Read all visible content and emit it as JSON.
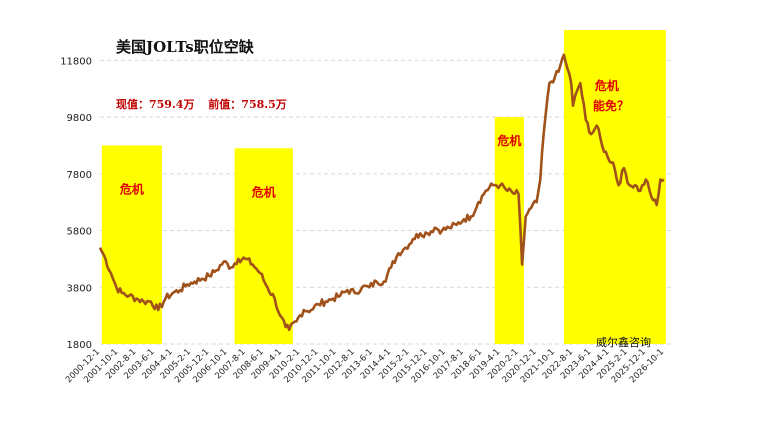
{
  "header": {
    "title": "美国JOLTs职位空缺",
    "current_label": "现值：759.4万",
    "previous_label": "前值：758.5万",
    "source": "威尔鑫咨询"
  },
  "colors": {
    "line": "#a0521a",
    "band": "#ffff00",
    "label": "#e00000",
    "grid": "#d9d9d9"
  },
  "chart_data": {
    "type": "line",
    "title": "美国JOLTs职位空缺",
    "xlabel": "",
    "ylabel": "",
    "ylim": [
      1800,
      12800
    ],
    "yticks": [
      1800,
      3800,
      5800,
      7800,
      9800,
      11800
    ],
    "grid": "horizontal dashed",
    "x_tick_labels": [
      "2000-12-1",
      "2001-10-1",
      "2002-8-1",
      "2003-6-1",
      "2004-4-1",
      "2005-2-1",
      "2005-12-1",
      "2006-10-1",
      "2007-8-1",
      "2008-6-1",
      "2009-4-1",
      "2010-2-1",
      "2010-12-1",
      "2011-10-1",
      "2012-8-1",
      "2013-6-1",
      "2014-4-1",
      "2015-2-1",
      "2015-12-1",
      "2016-10-1",
      "2017-8-1",
      "2018-6-1",
      "2019-4-1",
      "2020-2-1",
      "2020-12-1",
      "2021-10-1",
      "2022-8-1",
      "2023-6-1",
      "2024-4-1",
      "2025-2-1",
      "2025-12-1",
      "2026-10-1"
    ],
    "series": [
      {
        "name": "",
        "points": [
          [
            "2000-12",
            5200
          ],
          [
            "2001-03",
            4800
          ],
          [
            "2001-06",
            4300
          ],
          [
            "2001-09",
            3800
          ],
          [
            "2001-12",
            3600
          ],
          [
            "2002-04",
            3500
          ],
          [
            "2002-08",
            3400
          ],
          [
            "2002-12",
            3300
          ],
          [
            "2003-04",
            3300
          ],
          [
            "2003-08",
            3000
          ],
          [
            "2003-12",
            3400
          ],
          [
            "2004-04",
            3600
          ],
          [
            "2004-08",
            3700
          ],
          [
            "2004-12",
            3900
          ],
          [
            "2005-04",
            4000
          ],
          [
            "2005-08",
            4100
          ],
          [
            "2005-12",
            4200
          ],
          [
            "2006-04",
            4400
          ],
          [
            "2006-08",
            4700
          ],
          [
            "2006-12",
            4500
          ],
          [
            "2007-04",
            4800
          ],
          [
            "2007-08",
            4800
          ],
          [
            "2007-12",
            4600
          ],
          [
            "2008-04",
            4300
          ],
          [
            "2008-08",
            3800
          ],
          [
            "2008-12",
            3400
          ],
          [
            "2009-03",
            2800
          ],
          [
            "2009-06",
            2400
          ],
          [
            "2009-08",
            2300
          ],
          [
            "2009-12",
            2600
          ],
          [
            "2010-04",
            3000
          ],
          [
            "2010-08",
            3000
          ],
          [
            "2010-12",
            3200
          ],
          [
            "2011-04",
            3300
          ],
          [
            "2011-08",
            3400
          ],
          [
            "2011-12",
            3500
          ],
          [
            "2012-04",
            3700
          ],
          [
            "2012-08",
            3600
          ],
          [
            "2012-12",
            3800
          ],
          [
            "2013-04",
            3800
          ],
          [
            "2013-08",
            4000
          ],
          [
            "2013-12",
            4000
          ],
          [
            "2014-04",
            4500
          ],
          [
            "2014-08",
            5000
          ],
          [
            "2014-12",
            5200
          ],
          [
            "2015-04",
            5500
          ],
          [
            "2015-08",
            5700
          ],
          [
            "2015-12",
            5700
          ],
          [
            "2016-04",
            5900
          ],
          [
            "2016-08",
            5800
          ],
          [
            "2016-12",
            5900
          ],
          [
            "2017-04",
            6000
          ],
          [
            "2017-08",
            6200
          ],
          [
            "2017-12",
            6300
          ],
          [
            "2018-04",
            6800
          ],
          [
            "2018-08",
            7200
          ],
          [
            "2018-12",
            7400
          ],
          [
            "2019-04",
            7400
          ],
          [
            "2019-08",
            7200
          ],
          [
            "2019-12",
            7100
          ],
          [
            "2020-02",
            7100
          ],
          [
            "2020-04",
            4600
          ],
          [
            "2020-06",
            6300
          ],
          [
            "2020-09",
            6600
          ],
          [
            "2020-12",
            6800
          ],
          [
            "2021-02",
            7600
          ],
          [
            "2021-04",
            9300
          ],
          [
            "2021-07",
            11000
          ],
          [
            "2021-10",
            11200
          ],
          [
            "2021-12",
            11400
          ],
          [
            "2022-03",
            12000
          ],
          [
            "2022-05",
            11500
          ],
          [
            "2022-07",
            11000
          ],
          [
            "2022-08",
            10200
          ],
          [
            "2022-10",
            10700
          ],
          [
            "2022-12",
            11000
          ],
          [
            "2023-03",
            9700
          ],
          [
            "2023-06",
            9200
          ],
          [
            "2023-09",
            9500
          ],
          [
            "2023-12",
            8800
          ],
          [
            "2024-03",
            8400
          ],
          [
            "2024-06",
            8200
          ],
          [
            "2024-09",
            7400
          ],
          [
            "2024-12",
            8000
          ],
          [
            "2025-03",
            7400
          ],
          [
            "2025-06",
            7400
          ],
          [
            "2025-09",
            7200
          ],
          [
            "2025-12",
            7600
          ],
          [
            "2026-03",
            7000
          ],
          [
            "2026-06",
            6700
          ],
          [
            "2026-08",
            7600
          ],
          [
            "2026-10",
            7594
          ]
        ]
      }
    ],
    "bands": [
      {
        "start": "2001-01",
        "end": "2003-10",
        "top": 8800,
        "label": "危机"
      },
      {
        "start": "2007-02",
        "end": "2009-10",
        "top": 8700,
        "label": "危机"
      },
      {
        "start": "2019-01",
        "end": "2020-05",
        "top": 9800,
        "label": "危机"
      },
      {
        "start": "2022-03",
        "end": "2026-11",
        "top": 12900,
        "label": "危机",
        "label2": "能免？"
      }
    ],
    "annotations": []
  }
}
